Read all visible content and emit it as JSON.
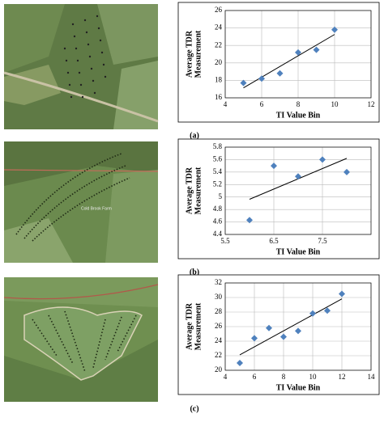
{
  "chart_data": [
    {
      "type": "scatter",
      "panel": "(a)",
      "xlabel": "TI Value Bin",
      "ylabel": [
        "Average TDR",
        "Measurement"
      ],
      "x": [
        5,
        6,
        7,
        8,
        9,
        10
      ],
      "values": [
        17.7,
        18.2,
        18.8,
        21.2,
        21.5,
        23.8
      ],
      "xlim": [
        4,
        12
      ],
      "ylim": [
        16,
        26
      ],
      "xticks": [
        4,
        6,
        8,
        10,
        12
      ],
      "yticks": [
        16,
        18,
        20,
        22,
        24,
        26
      ],
      "color": "#4f81bd",
      "grid": true,
      "trendline": true
    },
    {
      "type": "scatter",
      "panel": "(b)",
      "xlabel": "TI Value Bin",
      "ylabel": [
        "Average TDR",
        "Measurement"
      ],
      "x": [
        6,
        6.5,
        7,
        7.5,
        8
      ],
      "values": [
        4.63,
        5.5,
        5.33,
        5.6,
        5.4
      ],
      "xlim": [
        5.5,
        8.5
      ],
      "ylim": [
        4.4,
        5.8
      ],
      "xticks": [
        5.5,
        6.5,
        7.5
      ],
      "yticks": [
        4.4,
        4.6,
        4.8,
        5,
        5.2,
        5.4,
        5.6,
        5.8
      ],
      "color": "#4f81bd",
      "grid": true,
      "trendline": true
    },
    {
      "type": "scatter",
      "panel": "(c)",
      "xlabel": "TI Value Bin",
      "ylabel": [
        "Average TDR",
        "Measurement"
      ],
      "x": [
        5,
        6,
        7,
        8,
        9,
        10,
        11,
        12
      ],
      "values": [
        21,
        24.4,
        25.8,
        24.6,
        25.4,
        27.8,
        28.2,
        30.5
      ],
      "xlim": [
        4,
        14
      ],
      "ylim": [
        20,
        32
      ],
      "xticks": [
        4,
        6,
        8,
        10,
        12,
        14
      ],
      "yticks": [
        20,
        22,
        24,
        26,
        28,
        30,
        32
      ],
      "color": "#4f81bd",
      "grid": true,
      "trendline": true
    }
  ],
  "map_label": "Cold Brook Farm"
}
